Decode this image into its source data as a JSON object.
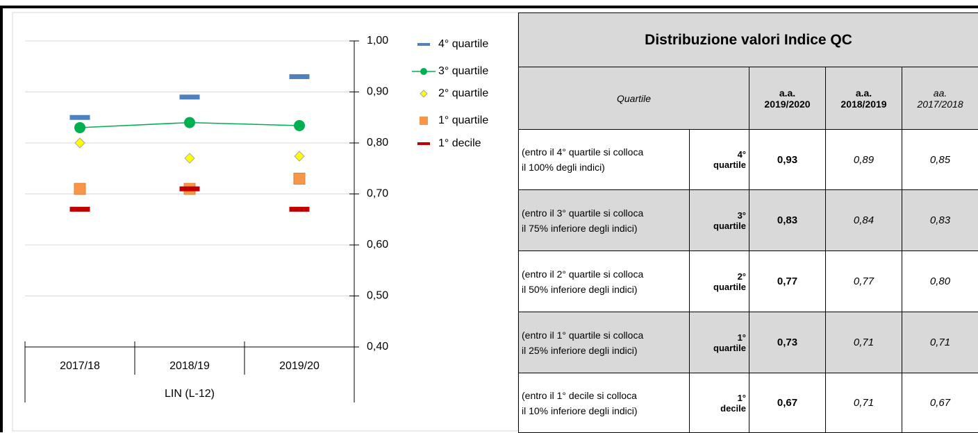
{
  "chart_data": {
    "type": "line",
    "categories": [
      "2017/18",
      "2018/19",
      "2019/20"
    ],
    "group_label": "LIN (L-12)",
    "ylim": [
      0.4,
      1.0
    ],
    "yticks": [
      {
        "value": 0.4,
        "label": "0,40"
      },
      {
        "value": 0.5,
        "label": "0,50"
      },
      {
        "value": 0.6,
        "label": "0,60"
      },
      {
        "value": 0.7,
        "label": "0,70"
      },
      {
        "value": 0.8,
        "label": "0,80"
      },
      {
        "value": 0.9,
        "label": "0,90"
      },
      {
        "value": 1.0,
        "label": "1,00"
      }
    ],
    "grid": true,
    "legend": "right",
    "series": [
      {
        "name": "4° quartile",
        "color": "#4f81bd",
        "marker": "dash",
        "line": false,
        "values": [
          0.85,
          0.89,
          0.93
        ]
      },
      {
        "name": "3° quartile",
        "color": "#00b050",
        "marker": "circle",
        "line": true,
        "values": [
          0.83,
          0.84,
          0.834
        ]
      },
      {
        "name": "2° quartile",
        "color": "#ffff00",
        "marker": "diamond",
        "line": false,
        "values": [
          0.8,
          0.77,
          0.774
        ]
      },
      {
        "name": "1° quartile",
        "color": "#f79646",
        "marker": "square",
        "line": false,
        "values": [
          0.71,
          0.71,
          0.73
        ]
      },
      {
        "name": "1° decile",
        "color": "#c00000",
        "marker": "dash",
        "line": false,
        "values": [
          0.67,
          0.71,
          0.67
        ]
      }
    ]
  },
  "table": {
    "title": "Distribuzione valori Indice QC",
    "header": {
      "quartile": "Quartile",
      "columns": [
        [
          "a.a.",
          "2019/2020"
        ],
        [
          "a.a.",
          "2018/2019"
        ],
        [
          "aa.",
          "2017/2018"
        ]
      ]
    },
    "rows": [
      {
        "description": [
          "(entro il 4° quartile si colloca",
          "il 100% degli indici)"
        ],
        "label": [
          "4°",
          "quartile"
        ],
        "values": [
          "0,93",
          "0,89",
          "0,85"
        ]
      },
      {
        "description": [
          "(entro il 3° quartile si colloca",
          "il 75% inferiore degli indici)"
        ],
        "label": [
          "3°",
          "quartile"
        ],
        "values": [
          "0,83",
          "0,84",
          "0,83"
        ]
      },
      {
        "description": [
          "(entro il 2° quartile si colloca",
          "il 50% inferiore degli indici)"
        ],
        "label": [
          "2°",
          "quartile"
        ],
        "values": [
          "0,77",
          "0,77",
          "0,80"
        ]
      },
      {
        "description": [
          "(entro il 1° quartile si colloca",
          "il 25% inferiore degli indici)"
        ],
        "label": [
          "1°",
          "quartile"
        ],
        "values": [
          "0,73",
          "0,71",
          "0,71"
        ]
      },
      {
        "description": [
          "(entro il 1° decile si colloca",
          "il 10% inferiore degli indici)"
        ],
        "label": [
          "1°",
          "decile"
        ],
        "values": [
          "0,67",
          "0,71",
          "0,67"
        ]
      }
    ]
  }
}
